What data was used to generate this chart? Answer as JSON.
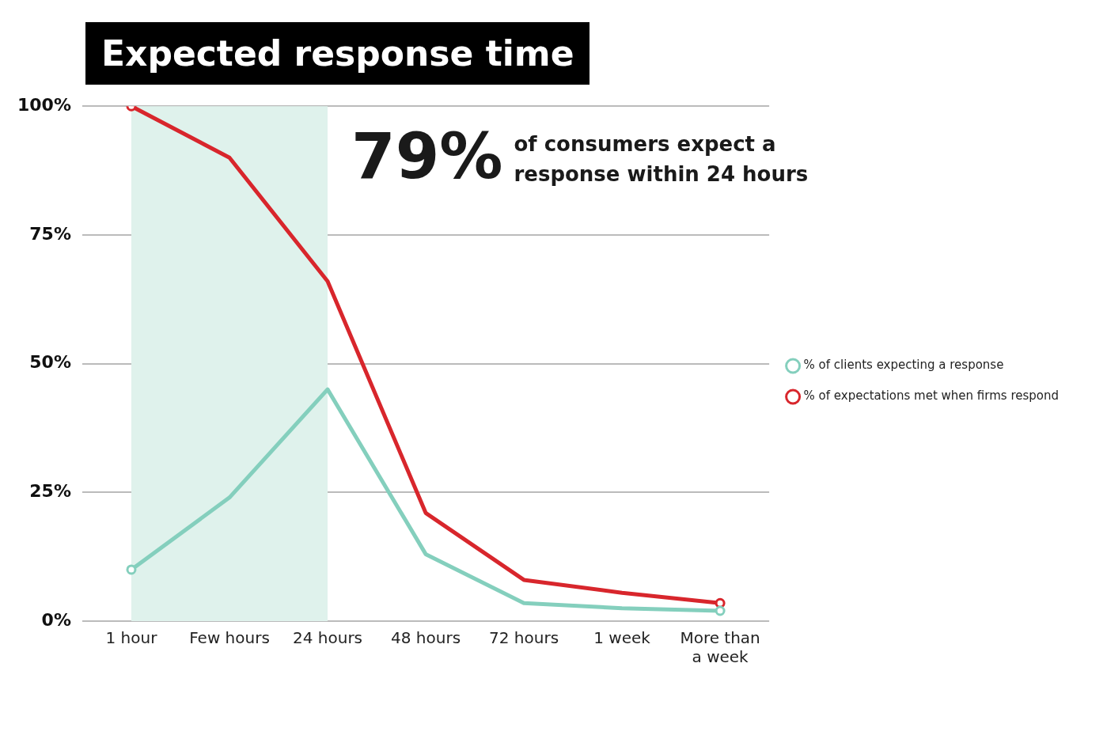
{
  "chart_data": {
    "type": "line",
    "title": "Expected response time",
    "categories": [
      "1 hour",
      "Few hours",
      "24 hours",
      "48 hours",
      "72 hours",
      "1 week",
      "More than a week"
    ],
    "series": [
      {
        "name": "% of clients expecting a response",
        "color": "#84cfbd",
        "values": [
          10,
          24,
          45,
          13,
          3.5,
          2.5,
          2
        ]
      },
      {
        "name": "% of expectations met when firms respond",
        "color": "#d8262c",
        "values": [
          100,
          90,
          66,
          21,
          8,
          5.5,
          3.5
        ]
      }
    ],
    "ylim": [
      0,
      100
    ],
    "yticks": [
      {
        "value": 0,
        "label": "0%"
      },
      {
        "value": 25,
        "label": "25%"
      },
      {
        "value": 50,
        "label": "50%"
      },
      {
        "value": 75,
        "label": "75%"
      },
      {
        "value": 100,
        "label": "100%"
      }
    ],
    "grid": "y",
    "legend": "right",
    "line_style": "solid",
    "bands": [
      {
        "axis": "x",
        "from": "1 hour",
        "to": "24 hours",
        "color": "#dff2ec"
      }
    ],
    "annotations": [
      "79%",
      "of consumers expect a response within 24 hours"
    ]
  }
}
